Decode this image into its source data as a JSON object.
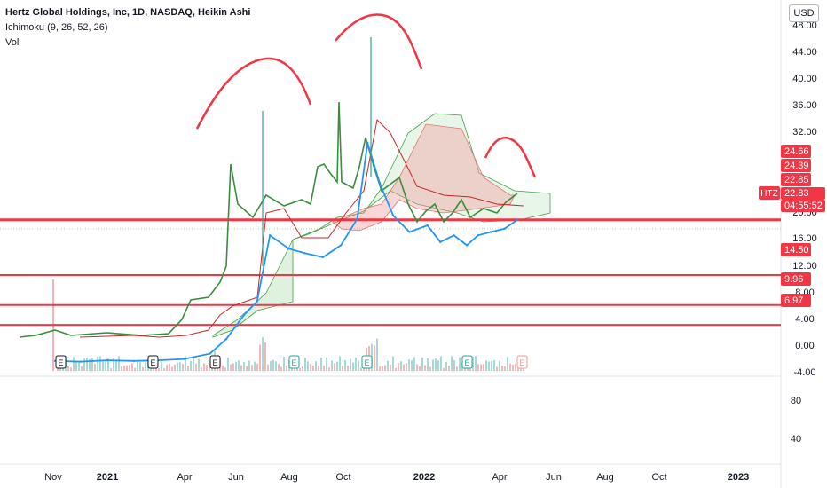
{
  "header": {
    "title": "Hertz Global Holdings, Inc, 1D, NASDAQ, Heikin Ashi",
    "indicator": "Ichimoku (9, 26, 52, 26)",
    "volume_label": "Vol",
    "currency": "USD"
  },
  "colors": {
    "price_line": "#2196f3",
    "lagging_span": "#388e3c",
    "cloud_bull": "#a5d6a7",
    "cloud_bear": "#ef9a9a",
    "annotation": "#f23645",
    "base_line": "#c62828",
    "volume_up": "#80cbc4",
    "volume_down": "#ef9a9a",
    "current_label_bg": "#f23645"
  },
  "chart_data": [
    {
      "type": "line",
      "title": "",
      "x": [
        "2020-11-01",
        "2020-12-01",
        "2021-01-01",
        "2021-02-01",
        "2021-03-01",
        "2021-04-01",
        "2021-05-01",
        "2021-05-20",
        "2021-06-10",
        "2021-06-25",
        "2021-07-10",
        "2021-08-01",
        "2021-08-20",
        "2021-09-10",
        "2021-10-01",
        "2021-10-20",
        "2021-11-01",
        "2021-11-15",
        "2021-12-01",
        "2021-12-20",
        "2022-01-10",
        "2022-01-25",
        "2022-02-10",
        "2022-02-25",
        "2022-03-10",
        "2022-03-25",
        "2022-04-10",
        "2022-04-25"
      ],
      "series": [
        {
          "values": [
            1.5,
            1.4,
            1.6,
            1.5,
            1.6,
            1.8,
            2.6,
            4.8,
            8.5,
            10.5,
            20.5,
            18.5,
            17.8,
            17.2,
            19.0,
            23.0,
            34.5,
            28.5,
            23.5,
            21.0,
            22.0,
            19.5,
            20.5,
            19.0,
            20.5,
            21.0,
            21.5,
            22.83
          ]
        }
      ],
      "xticks": [
        "Nov",
        "2021",
        "Apr",
        "Jun",
        "Aug",
        "Oct",
        "2022",
        "Apr",
        "Jun",
        "Aug",
        "Oct",
        "2023"
      ],
      "yticks": [
        "48.00",
        "44.00",
        "40.00",
        "36.00",
        "32.00",
        "24.66",
        "24.39",
        "22.85",
        "22.83",
        "20.00",
        "16.00",
        "14.50",
        "12.00",
        "9.96",
        "8.00",
        "6.97",
        "4.00",
        "0.00",
        "-4.00"
      ],
      "ylim": [
        -4,
        50
      ],
      "horizontal_levels": [
        22.85,
        14.5,
        9.96,
        6.97
      ],
      "price_labels": [
        {
          "text": "24.66"
        },
        {
          "text": "24.39"
        },
        {
          "text": "22.85"
        },
        {
          "text": "HTZ"
        },
        {
          "text": "22.83"
        },
        {
          "text": "04:55:52"
        },
        {
          "text": "14.50"
        },
        {
          "text": "9.96"
        },
        {
          "text": "6.97"
        }
      ],
      "earnings_markers": [
        "E",
        "E",
        "E",
        "E",
        "E",
        "E",
        "E"
      ],
      "annotations": "three red arcs drawn above price peaks"
    },
    {
      "type": "bar",
      "title": "",
      "yticks": [
        "80",
        "40"
      ]
    }
  ]
}
